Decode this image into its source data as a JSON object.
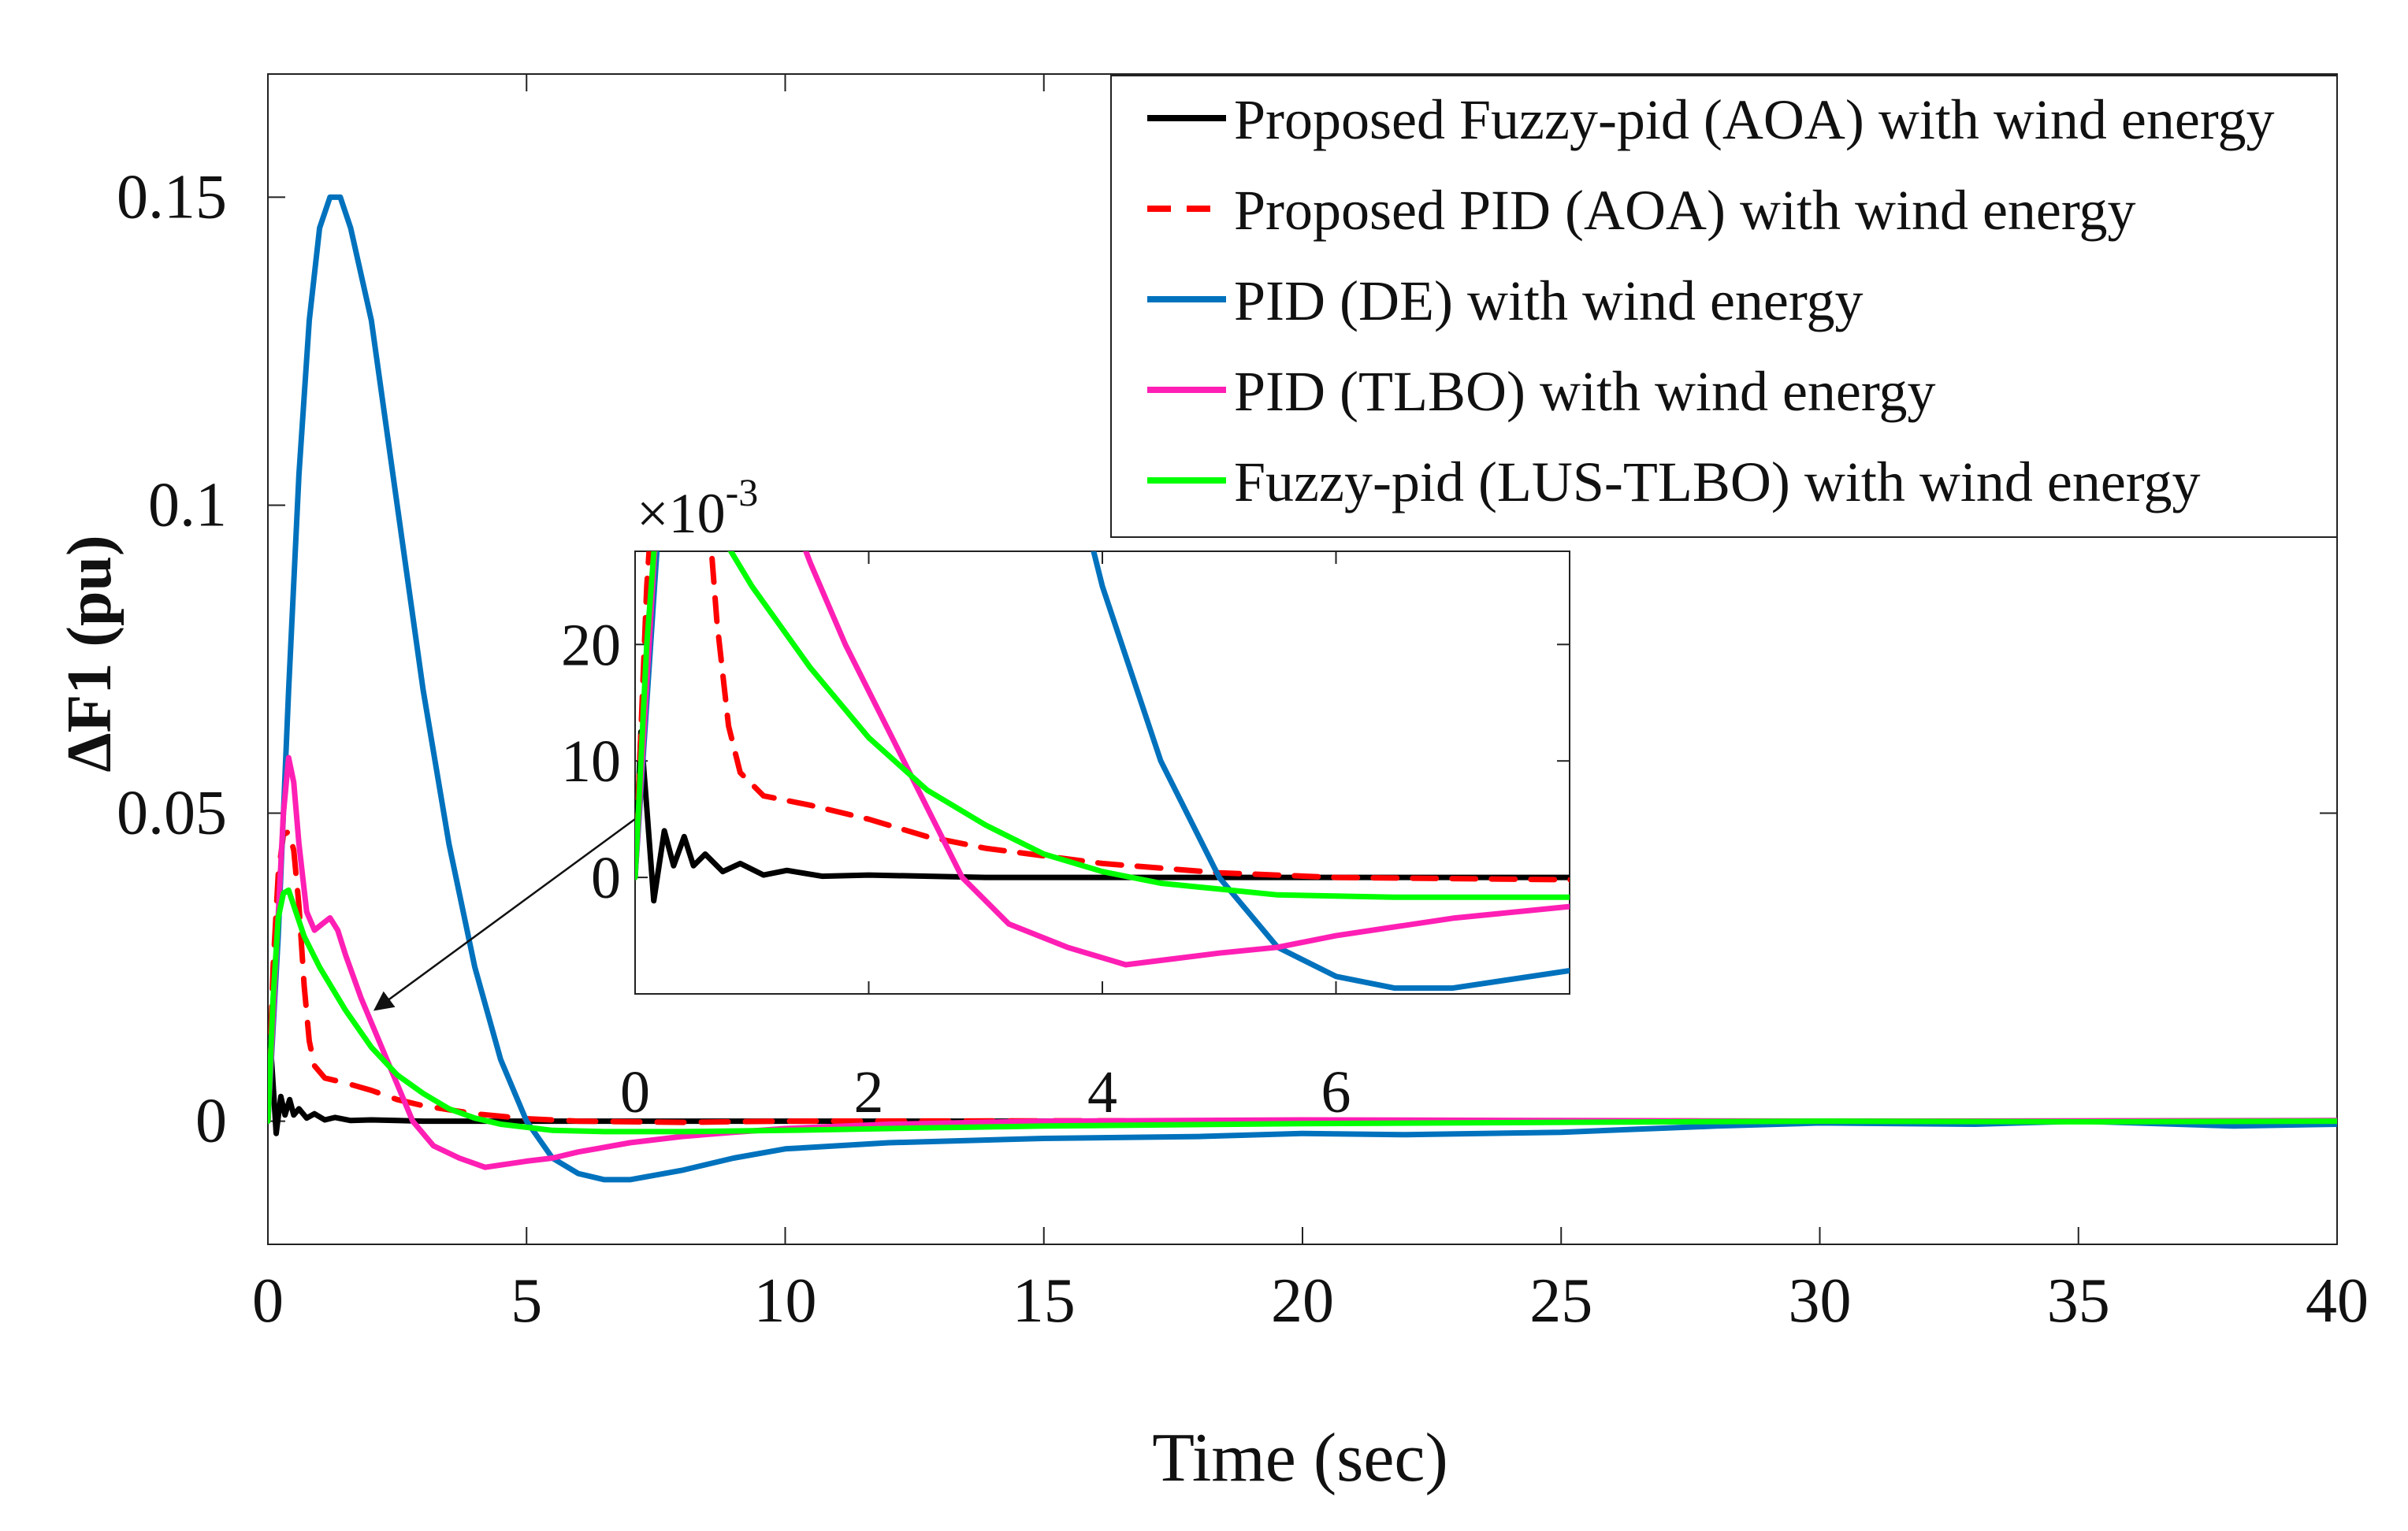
{
  "chart_data": {
    "type": "line",
    "xlabel": "Time (sec)",
    "ylabel": "ΔF1 (pu)",
    "xlim": [
      0,
      40
    ],
    "ylim": [
      -0.02,
      0.17
    ],
    "x_ticks": [
      0,
      5,
      10,
      15,
      20,
      25,
      30,
      35,
      40
    ],
    "x_tick_labels": [
      "0",
      "5",
      "10",
      "15",
      "20",
      "25",
      "30",
      "35",
      "40"
    ],
    "y_ticks": [
      0,
      0.05,
      0.1,
      0.15
    ],
    "y_tick_labels": [
      "0",
      "0.05",
      "0.1",
      "0.15"
    ],
    "legend_position": "top-right",
    "grid": false,
    "series": [
      {
        "name": "Proposed Fuzzy-pid (AOA) with wind energy",
        "color": "#000000",
        "dash": "solid",
        "points": [
          [
            0,
            0
          ],
          [
            0.05,
            0.0125
          ],
          [
            0.1,
            0.006
          ],
          [
            0.16,
            -0.002
          ],
          [
            0.25,
            0.004
          ],
          [
            0.33,
            0.001
          ],
          [
            0.42,
            0.0035
          ],
          [
            0.5,
            0.001
          ],
          [
            0.6,
            0.002
          ],
          [
            0.75,
            0.0005
          ],
          [
            0.9,
            0.0012
          ],
          [
            1.1,
            0.0002
          ],
          [
            1.3,
            0.0006
          ],
          [
            1.6,
            0.0001
          ],
          [
            2,
            0.0002
          ],
          [
            3,
            0
          ],
          [
            5,
            0
          ],
          [
            10,
            0
          ],
          [
            20,
            0
          ],
          [
            30,
            0
          ],
          [
            40,
            0
          ]
        ]
      },
      {
        "name": "Proposed PID (AOA) with wind energy",
        "color": "#ff0000",
        "dash": "dashed",
        "points": [
          [
            0,
            0
          ],
          [
            0.1,
            0.025
          ],
          [
            0.2,
            0.04
          ],
          [
            0.3,
            0.0465
          ],
          [
            0.4,
            0.047
          ],
          [
            0.5,
            0.044
          ],
          [
            0.6,
            0.035
          ],
          [
            0.7,
            0.022
          ],
          [
            0.8,
            0.013
          ],
          [
            0.9,
            0.009
          ],
          [
            1.1,
            0.007
          ],
          [
            1.5,
            0.0062
          ],
          [
            2,
            0.005
          ],
          [
            2.5,
            0.0035
          ],
          [
            3,
            0.0025
          ],
          [
            4,
            0.0012
          ],
          [
            5,
            0.0004
          ],
          [
            6,
            0
          ],
          [
            8,
            -0.0002
          ],
          [
            10,
            0
          ],
          [
            20,
            0.0001
          ],
          [
            30,
            0
          ],
          [
            40,
            0
          ]
        ]
      },
      {
        "name": "PID (DE) with wind energy",
        "color": "#0072bd",
        "dash": "solid",
        "points": [
          [
            0,
            0
          ],
          [
            0.2,
            0.03
          ],
          [
            0.4,
            0.07
          ],
          [
            0.6,
            0.105
          ],
          [
            0.8,
            0.13
          ],
          [
            1.0,
            0.145
          ],
          [
            1.2,
            0.15
          ],
          [
            1.4,
            0.15
          ],
          [
            1.6,
            0.145
          ],
          [
            2.0,
            0.13
          ],
          [
            2.5,
            0.1
          ],
          [
            3.0,
            0.07
          ],
          [
            3.5,
            0.045
          ],
          [
            4.0,
            0.025
          ],
          [
            4.5,
            0.01
          ],
          [
            5.0,
            0.0
          ],
          [
            5.5,
            -0.006
          ],
          [
            6.0,
            -0.0085
          ],
          [
            6.5,
            -0.0095
          ],
          [
            7.0,
            -0.0095
          ],
          [
            8.0,
            -0.008
          ],
          [
            9.0,
            -0.006
          ],
          [
            10,
            -0.0045
          ],
          [
            12,
            -0.0035
          ],
          [
            15,
            -0.0028
          ],
          [
            18,
            -0.0025
          ],
          [
            20,
            -0.002
          ],
          [
            22,
            -0.0022
          ],
          [
            25,
            -0.0018
          ],
          [
            28,
            -0.0008
          ],
          [
            30,
            -0.0003
          ],
          [
            33,
            -0.0005
          ],
          [
            35,
            0
          ],
          [
            38,
            -0.0008
          ],
          [
            40,
            -0.0005
          ]
        ]
      },
      {
        "name": "PID (TLBO) with wind energy",
        "color": "#ff1fb4",
        "dash": "solid",
        "points": [
          [
            0,
            0
          ],
          [
            0.15,
            0.025
          ],
          [
            0.3,
            0.05
          ],
          [
            0.4,
            0.059
          ],
          [
            0.5,
            0.055
          ],
          [
            0.6,
            0.045
          ],
          [
            0.75,
            0.034
          ],
          [
            0.9,
            0.031
          ],
          [
            1.05,
            0.032
          ],
          [
            1.2,
            0.033
          ],
          [
            1.35,
            0.031
          ],
          [
            1.5,
            0.027
          ],
          [
            1.8,
            0.02
          ],
          [
            2.2,
            0.012
          ],
          [
            2.5,
            0.006
          ],
          [
            2.8,
            0.0
          ],
          [
            3.2,
            -0.004
          ],
          [
            3.7,
            -0.006
          ],
          [
            4.2,
            -0.0075
          ],
          [
            4.6,
            -0.007
          ],
          [
            5.0,
            -0.0065
          ],
          [
            5.5,
            -0.006
          ],
          [
            6.0,
            -0.005
          ],
          [
            7.0,
            -0.0035
          ],
          [
            8.0,
            -0.0025
          ],
          [
            9,
            -0.0018
          ],
          [
            10,
            -0.0012
          ],
          [
            12,
            -0.0005
          ],
          [
            15,
            0
          ],
          [
            20,
            0.0002
          ],
          [
            30,
            0
          ],
          [
            40,
            0.0001
          ]
        ]
      },
      {
        "name": "Fuzzy-pid (LUS-TLBO) with wind energy",
        "color": "#00ff00",
        "dash": "solid",
        "points": [
          [
            0,
            0
          ],
          [
            0.1,
            0.02
          ],
          [
            0.2,
            0.033
          ],
          [
            0.3,
            0.037
          ],
          [
            0.4,
            0.0375
          ],
          [
            0.5,
            0.035
          ],
          [
            0.7,
            0.03
          ],
          [
            1.0,
            0.025
          ],
          [
            1.5,
            0.018
          ],
          [
            2.0,
            0.012
          ],
          [
            2.5,
            0.0075
          ],
          [
            3.0,
            0.0045
          ],
          [
            3.5,
            0.002
          ],
          [
            4.0,
            0.0005
          ],
          [
            4.5,
            -0.0005
          ],
          [
            5.0,
            -0.001
          ],
          [
            5.5,
            -0.0015
          ],
          [
            6.5,
            -0.0017
          ],
          [
            8,
            -0.0017
          ],
          [
            10,
            -0.0015
          ],
          [
            12,
            -0.0012
          ],
          [
            15,
            -0.0008
          ],
          [
            20,
            -0.0004
          ],
          [
            25,
            -0.0002
          ],
          [
            30,
            0
          ],
          [
            35,
            -0.0001
          ],
          [
            40,
            0
          ]
        ]
      }
    ]
  },
  "inset": {
    "xlim": [
      0,
      8
    ],
    "ylim": [
      -0.01,
      0.028
    ],
    "x_ticks": [
      0,
      2,
      4,
      6
    ],
    "x_tick_labels": [
      "0",
      "2",
      "4",
      "6"
    ],
    "y_ticks": [
      0,
      0.01,
      0.02
    ],
    "y_tick_labels": [
      "0",
      "10",
      "20"
    ],
    "exponent_prefix": "×10",
    "exponent_power": "-3"
  }
}
